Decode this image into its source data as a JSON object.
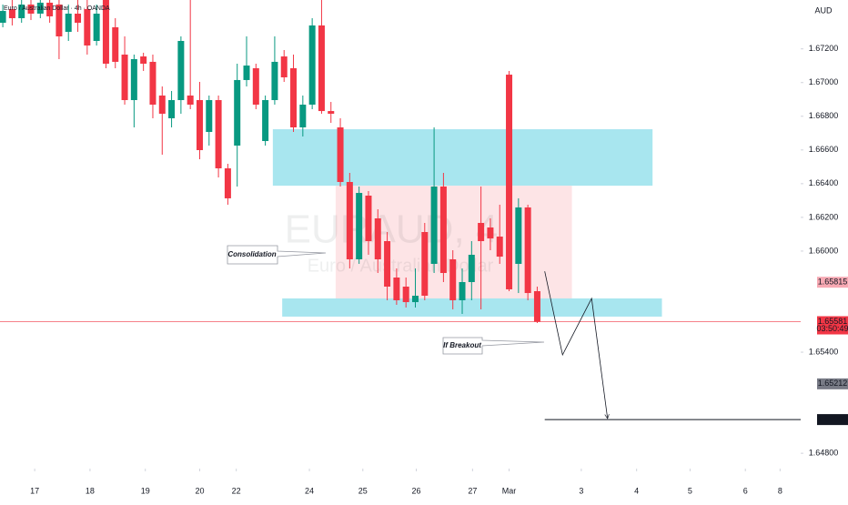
{
  "chart_data": {
    "type": "candlestick",
    "title": "Euro / Australian Dollar · 4h · OANDA",
    "currency": "AUD",
    "watermark": "EURAUD, 4",
    "watermark_subtitle": "Euro / Australian Dollar",
    "up_color": "#089981",
    "down_color": "#f23645",
    "open": [
      1.67355,
      1.67436,
      1.67382,
      1.67463,
      1.67409,
      1.67474,
      1.67463,
      1.67301,
      1.67409,
      1.67436,
      1.67247,
      1.6749,
      1.67328,
      1.67166,
      1.66896,
      1.67155,
      1.67123,
      1.66923,
      1.66788,
      1.66896,
      1.66923,
      1.66896,
      1.66707,
      1.66896,
      1.66491,
      1.66626,
      1.67015,
      1.67085,
      1.66653,
      1.66896,
      1.67155,
      1.67085,
      1.66734,
      1.66869,
      1.67339,
      1.66831,
      1.66734,
      1.6641,
      1.65951,
      1.66329,
      1.66194,
      1.66059,
      1.65843,
      1.65789,
      1.65697,
      1.66113,
      1.65924,
      1.66383,
      1.65951,
      1.65708,
      1.65816,
      1.66167,
      1.6614,
      1.66086,
      1.67047,
      1.65924,
      1.66259,
      1.65762
    ],
    "high": [
      1.67463,
      1.6749,
      1.6749,
      1.6749,
      1.6749,
      1.6749,
      1.6749,
      1.67463,
      1.6749,
      1.6749,
      1.67463,
      1.6749,
      1.67382,
      1.67274,
      1.67166,
      1.67177,
      1.67166,
      1.66977,
      1.6695,
      1.67274,
      1.6749,
      1.67004,
      1.66923,
      1.66923,
      1.66518,
      1.67112,
      1.67274,
      1.67112,
      1.66923,
      1.67274,
      1.67193,
      1.67166,
      1.66923,
      1.67382,
      1.6749,
      1.66885,
      1.66788,
      1.66464,
      1.66383,
      1.66356,
      1.66248,
      1.66113,
      1.65897,
      1.65843,
      1.65897,
      1.66167,
      1.66734,
      1.66464,
      1.66005,
      1.65897,
      1.66059,
      1.66383,
      1.66194,
      1.66275,
      1.67069,
      1.66313,
      1.66275,
      1.65789
    ],
    "low": [
      1.67328,
      1.67339,
      1.67355,
      1.67371,
      1.67382,
      1.67355,
      1.67139,
      1.67247,
      1.67301,
      1.67166,
      1.6722,
      1.67085,
      1.67085,
      1.66869,
      1.66734,
      1.67069,
      1.66788,
      1.66572,
      1.66734,
      1.66815,
      1.66842,
      1.66545,
      1.66626,
      1.66437,
      1.66275,
      1.66383,
      1.66977,
      1.66842,
      1.66626,
      1.66869,
      1.67004,
      1.66707,
      1.6668,
      1.66842,
      1.66815,
      1.66761,
      1.66383,
      1.65897,
      1.65924,
      1.65978,
      1.6587,
      1.65708,
      1.65681,
      1.65665,
      1.65665,
      1.65708,
      1.6587,
      1.65816,
      1.65654,
      1.65627,
      1.65708,
      1.65654,
      1.66005,
      1.65924,
      1.65762,
      1.65751,
      1.65708,
      1.65573
    ],
    "close": [
      1.67425,
      1.67382,
      1.67463,
      1.67409,
      1.67474,
      1.67393,
      1.67274,
      1.67409,
      1.67355,
      1.6722,
      1.67409,
      1.67112,
      1.67123,
      1.66896,
      1.67139,
      1.67112,
      1.66869,
      1.66815,
      1.66896,
      1.67247,
      1.66869,
      1.66599,
      1.66896,
      1.66491,
      1.66313,
      1.67015,
      1.67101,
      1.66869,
      1.66896,
      1.67123,
      1.67031,
      1.66734,
      1.66869,
      1.67339,
      1.66831,
      1.66815,
      1.6641,
      1.65951,
      1.66345,
      1.66059,
      1.65951,
      1.65789,
      1.65708,
      1.65697,
      1.65735,
      1.65735,
      1.66383,
      1.6587,
      1.65708,
      1.65816,
      1.65978,
      1.66059,
      1.66075,
      1.65967,
      1.65773,
      1.66259,
      1.65751,
      1.65581
    ],
    "xlim": [
      -0.3,
      85.1
    ],
    "xticks": [
      {
        "value": 3.4,
        "label": "17"
      },
      {
        "value": 9.3,
        "label": "18"
      },
      {
        "value": 15.2,
        "label": "19"
      },
      {
        "value": 21.0,
        "label": "20"
      },
      {
        "value": 24.9,
        "label": "22"
      },
      {
        "value": 32.7,
        "label": "24"
      },
      {
        "value": 38.4,
        "label": "25"
      },
      {
        "value": 44.1,
        "label": "26"
      },
      {
        "value": 50.1,
        "label": "27"
      },
      {
        "value": 54.0,
        "label": "Mar"
      },
      {
        "value": 61.7,
        "label": "3"
      },
      {
        "value": 67.6,
        "label": "4"
      },
      {
        "value": 73.3,
        "label": "5"
      },
      {
        "value": 79.2,
        "label": "6"
      },
      {
        "value": 82.9,
        "label": "8"
      }
    ],
    "ylim": [
      1.64709,
      1.6749
    ],
    "yticks": [
      {
        "value": 1.672,
        "label": "1.67200"
      },
      {
        "value": 1.67,
        "label": "1.67000"
      },
      {
        "value": 1.668,
        "label": "1.66800"
      },
      {
        "value": 1.666,
        "label": "1.66600"
      },
      {
        "value": 1.664,
        "label": "1.66400"
      },
      {
        "value": 1.662,
        "label": "1.66200"
      },
      {
        "value": 1.66,
        "label": "1.66000"
      },
      {
        "value": 1.654,
        "label": "1.65400"
      },
      {
        "value": 1.648,
        "label": "1.64800"
      }
    ],
    "zones": [
      {
        "x": [
          28.8,
          69.3
        ],
        "y": [
          1.66388,
          1.66723
        ],
        "color": "#a8e6ef"
      },
      {
        "x": [
          35.5,
          60.7
        ],
        "y": [
          1.65708,
          1.66388
        ],
        "color": "#fde4e6"
      },
      {
        "x": [
          29.8,
          70.3
        ],
        "y": [
          1.65611,
          1.65719
        ],
        "color": "#a8e6ef"
      }
    ],
    "projection": {
      "x": [
        57.8,
        59.7,
        62.8,
        64.5
      ],
      "y": [
        1.6588,
        1.65384,
        1.65719,
        1.65006
      ]
    },
    "current_price": {
      "value": 1.65581,
      "label": "1.65581",
      "countdown": "03:50:49",
      "color": "#f23645"
    },
    "target": {
      "value": 1.65,
      "label": "1.65000",
      "x_start": 57.8,
      "color": "#131722"
    },
    "price_labels": [
      {
        "value": 1.65815,
        "label": "1.65815",
        "color": "#f7a9b3"
      },
      {
        "value": 1.65212,
        "label": "1.65212",
        "color": "#787b86"
      }
    ],
    "annotations": [
      "Consolidation",
      "If Breakout"
    ]
  }
}
